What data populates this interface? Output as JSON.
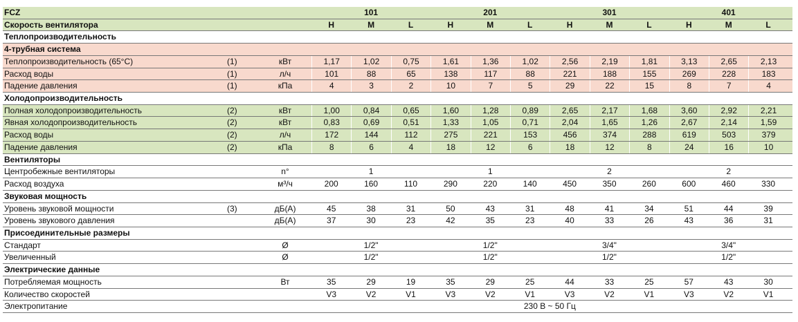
{
  "header": {
    "model_label": "FCZ",
    "models": [
      "101",
      "201",
      "301",
      "401"
    ],
    "speed_label": "Скорость вентилятора",
    "speeds": [
      "H",
      "M",
      "L",
      "H",
      "M",
      "L",
      "H",
      "M",
      "L",
      "H",
      "M",
      "L"
    ]
  },
  "sections": [
    {
      "title": "Теплопроизводительность",
      "subtitle": "4-трубная система",
      "rows": [
        {
          "label": "Теплопроизводительность (65°C)",
          "note": "(1)",
          "unit": "кВт",
          "values": [
            "1,17",
            "1,02",
            "0,75",
            "1,61",
            "1,36",
            "1,02",
            "2,56",
            "2,19",
            "1,81",
            "3,13",
            "2,65",
            "2,13"
          ]
        },
        {
          "label": "Расход воды",
          "note": "(1)",
          "unit": "л/ч",
          "values": [
            "101",
            "88",
            "65",
            "138",
            "117",
            "88",
            "221",
            "188",
            "155",
            "269",
            "228",
            "183"
          ]
        },
        {
          "label": "Падение давления",
          "note": "(1)",
          "unit": "кПа",
          "values": [
            "4",
            "3",
            "2",
            "10",
            "7",
            "5",
            "29",
            "22",
            "15",
            "8",
            "7",
            "4"
          ]
        }
      ]
    },
    {
      "title": "Холодопроизводительность",
      "rows": [
        {
          "label": "Полная холодопроизводительность",
          "note": "(2)",
          "unit": "кВт",
          "values": [
            "1,00",
            "0,84",
            "0,65",
            "1,60",
            "1,28",
            "0,89",
            "2,65",
            "2,17",
            "1,68",
            "3,60",
            "2,92",
            "2,21"
          ]
        },
        {
          "label": "Явная холодопроизводительность",
          "note": "(2)",
          "unit": "кВт",
          "values": [
            "0,83",
            "0,69",
            "0,51",
            "1,33",
            "1,05",
            "0,71",
            "2,04",
            "1,65",
            "1,26",
            "2,67",
            "2,14",
            "1,59"
          ]
        },
        {
          "label": "Расход воды",
          "note": "(2)",
          "unit": "л/ч",
          "values": [
            "172",
            "144",
            "112",
            "275",
            "221",
            "153",
            "456",
            "374",
            "288",
            "619",
            "503",
            "379"
          ]
        },
        {
          "label": "Падение давления",
          "note": "(2)",
          "unit": "кПа",
          "values": [
            "8",
            "6",
            "4",
            "18",
            "12",
            "6",
            "18",
            "12",
            "8",
            "24",
            "16",
            "10"
          ]
        }
      ]
    },
    {
      "title": "Вентиляторы",
      "rows": [
        {
          "label": "Центробежные вентиляторы",
          "unit": "n°",
          "values": [
            "1",
            "1",
            "2",
            "2"
          ]
        },
        {
          "label": "Расход воздуха",
          "unit": "м³/ч",
          "values": [
            "200",
            "160",
            "110",
            "290",
            "220",
            "140",
            "450",
            "350",
            "260",
            "600",
            "460",
            "330"
          ]
        }
      ]
    },
    {
      "title": "Звуковая мощность",
      "rows": [
        {
          "label": "Уровень звуковой мощности",
          "note": "(3)",
          "unit": "дБ(А)",
          "values": [
            "45",
            "38",
            "31",
            "50",
            "43",
            "31",
            "48",
            "41",
            "34",
            "51",
            "44",
            "39"
          ]
        },
        {
          "label": "Уровень звукового давления",
          "unit": "дБ(А)",
          "values": [
            "37",
            "30",
            "23",
            "42",
            "35",
            "23",
            "40",
            "33",
            "26",
            "43",
            "36",
            "31"
          ]
        }
      ]
    },
    {
      "title": "Присоединительные размеры",
      "rows": [
        {
          "label": "Стандарт",
          "unit": "Ø",
          "values": [
            "1/2\"",
            "1/2\"",
            "3/4\"",
            "3/4\""
          ]
        },
        {
          "label": "Увеличенный",
          "unit": "Ø",
          "values": [
            "1/2\"",
            "1/2\"",
            "1/2\"",
            "1/2\""
          ]
        }
      ]
    },
    {
      "title": "Электрические данные",
      "rows": [
        {
          "label": "Потребляемая мощность",
          "unit": "Вт",
          "values": [
            "35",
            "29",
            "19",
            "35",
            "29",
            "25",
            "44",
            "33",
            "25",
            "57",
            "43",
            "30"
          ]
        },
        {
          "label": "Количество скоростей",
          "values": [
            "V3",
            "V2",
            "V1",
            "V3",
            "V2",
            "V1",
            "V3",
            "V2",
            "V1",
            "V3",
            "V2",
            "V1"
          ]
        },
        {
          "label": "Электропитание",
          "values": [
            "230 В ~ 50 Гц"
          ]
        }
      ]
    }
  ]
}
